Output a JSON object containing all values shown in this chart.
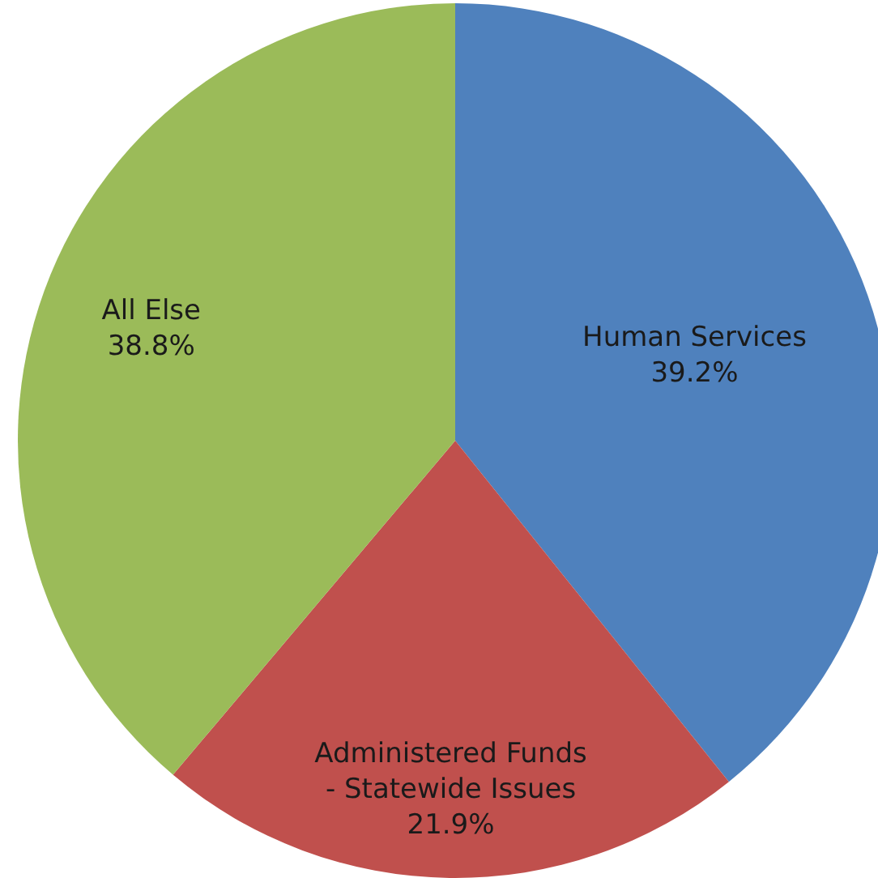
{
  "chart_data": {
    "type": "pie",
    "categories": [
      "Human Services",
      "Administered Funds - Statewide Issues",
      "All Else"
    ],
    "values": [
      39.2,
      21.9,
      38.8
    ],
    "colors": [
      "#4f81bd",
      "#c0504d",
      "#9bbb59"
    ],
    "value_labels": [
      "39.2%",
      "21.9%",
      "38.8%"
    ]
  }
}
